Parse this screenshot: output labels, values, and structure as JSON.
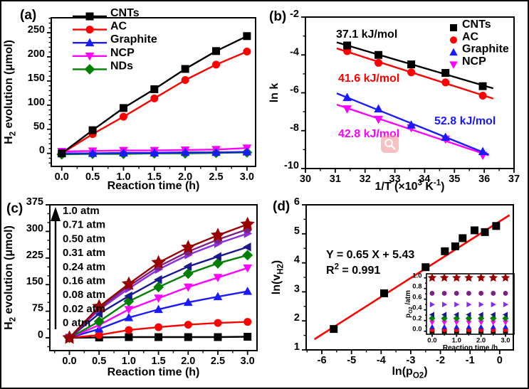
{
  "figure": {
    "panel_tags": [
      "(a)",
      "(b)",
      "(c)",
      "(d)"
    ],
    "magnifier_icon": "magnifier"
  },
  "colors": {
    "black": "#000000",
    "red": "#ff0000",
    "blue": "#1a1aff",
    "magenta": "#ff00ff",
    "green": "#008000",
    "dark_red": "#990000",
    "purple": "#7b2182",
    "violet": "#8a2be2",
    "navy": "#1a1a8c",
    "fit_red": "#ff0000"
  },
  "chart_data": [
    {
      "id": "a",
      "type": "line",
      "title": "",
      "xlabel": "Reaction time (h)",
      "ylabel": "H~2~ evolution (μmol)",
      "xlim": [
        -0.17,
        3.14
      ],
      "ylim": [
        -27,
        281
      ],
      "xticks": [
        0,
        0.5,
        1,
        1.5,
        2,
        2.5,
        3
      ],
      "xtick_labels": [
        "0.0",
        "0.5",
        "1.0",
        "1.5",
        "2.0",
        "2.5",
        "3.0"
      ],
      "yticks": [
        0,
        50,
        100,
        150,
        200,
        250
      ],
      "ytick_labels": [
        "0",
        "50",
        "100",
        "150",
        "200",
        "250"
      ],
      "x": [
        0,
        0.5,
        1,
        1.5,
        2,
        2.5,
        3
      ],
      "series": [
        {
          "name": "CNTs",
          "color": "#000000",
          "marker": "square",
          "line": true,
          "values": [
            0,
            48,
            94,
            133,
            175,
            212,
            243
          ]
        },
        {
          "name": "AC",
          "color": "#ff0000",
          "marker": "circle",
          "line": true,
          "values": [
            0,
            40,
            76,
            114,
            152,
            184,
            211
          ]
        },
        {
          "name": "Graphite",
          "color": "#1a1aff",
          "marker": "triangle-up",
          "line": true,
          "values": [
            0,
            0,
            1,
            1,
            2,
            2,
            3
          ]
        },
        {
          "name": "NCP",
          "color": "#ff00ff",
          "marker": "triangle-down",
          "line": true,
          "values": [
            4,
            5,
            6,
            6,
            7,
            8,
            11
          ]
        },
        {
          "name": "NDs",
          "color": "#008000",
          "marker": "diamond",
          "line": true,
          "values": [
            -2,
            -1,
            -1,
            0,
            0,
            1,
            2
          ]
        }
      ],
      "legend": {
        "position": "upper-left",
        "style": "line-marker",
        "items": [
          "CNTs",
          "AC",
          "Graphite",
          "NCP",
          "NDs"
        ]
      }
    },
    {
      "id": "b",
      "type": "scatter",
      "title": "",
      "xlabel": "1/T (×10^3^ K^-1^)",
      "ylabel": "ln k",
      "xlim": [
        30,
        37
      ],
      "ylim": [
        -10,
        -2
      ],
      "xticks": [
        30,
        31,
        32,
        33,
        34,
        35,
        36,
        37
      ],
      "xtick_labels": [
        "30",
        "31",
        "32",
        "33",
        "34",
        "35",
        "36",
        "37"
      ],
      "yticks": [
        -10,
        -8,
        -6,
        -4,
        -2
      ],
      "ytick_labels": [
        "-10",
        "-8",
        "-6",
        "-4",
        "-2"
      ],
      "x": [
        31.4,
        32.45,
        33.55,
        34.7,
        35.95
      ],
      "series": [
        {
          "name": "CNTs",
          "color": "#000000",
          "marker": "square",
          "fit": true,
          "fit_range": [
            31.05,
            36.3
          ],
          "values": [
            -3.5,
            -4.0,
            -4.5,
            -4.95,
            -5.65
          ]
        },
        {
          "name": "AC",
          "color": "#ff0000",
          "marker": "circle",
          "fit": true,
          "fit_range": [
            31.05,
            36.3
          ],
          "values": [
            -3.8,
            -4.42,
            -4.92,
            -5.45,
            -6.15
          ]
        },
        {
          "name": "Graphite",
          "color": "#1a1aff",
          "marker": "triangle-up",
          "fit": true,
          "fit_range": [
            31.05,
            36.15
          ],
          "values": [
            -6.25,
            -6.85,
            -7.7,
            -8.35,
            -9.1
          ]
        },
        {
          "name": "NCP",
          "color": "#ff00ff",
          "marker": "triangle-down",
          "fit": true,
          "fit_range": [
            31.05,
            36.15
          ],
          "values": [
            -6.85,
            -7.4,
            -7.85,
            -8.45,
            -9.3
          ]
        }
      ],
      "annotations": [
        {
          "text": "37.1 kJ/mol",
          "color": "#000000"
        },
        {
          "text": "41.6 kJ/mol",
          "color": "#ff0000"
        },
        {
          "text": "52.8 kJ/mol",
          "color": "#1a1aff"
        },
        {
          "text": "42.8 kJ/mol",
          "color": "#ff00ff"
        }
      ],
      "legend": {
        "position": "upper-right",
        "style": "marker",
        "items": [
          "CNTs",
          "AC",
          "Graphite",
          "NCP"
        ]
      }
    },
    {
      "id": "c",
      "type": "line",
      "title": "",
      "xlabel": "Reaction time (h)",
      "ylabel": "H~2~ evolution (μmol)",
      "xlim": [
        -0.33,
        3.16
      ],
      "ylim": [
        -36,
        375
      ],
      "xticks": [
        0,
        0.5,
        1,
        1.5,
        2,
        2.5,
        3
      ],
      "xtick_labels": [
        "0.0",
        "0.5",
        "1.0",
        "1.5",
        "2.0",
        "2.5",
        "3.0"
      ],
      "yticks": [
        0,
        75,
        150,
        225,
        300,
        375
      ],
      "ytick_labels": [
        "0",
        "75",
        "150",
        "225",
        "300",
        "375"
      ],
      "x": [
        0,
        0.5,
        1,
        1.5,
        2,
        2.5,
        3
      ],
      "series": [
        {
          "name": "1.0 atm",
          "color": "#990000",
          "marker": "star",
          "line": true,
          "values": [
            0,
            88,
            152,
            212,
            255,
            289,
            320
          ]
        },
        {
          "name": "0.71 atm",
          "color": "#7b2182",
          "marker": "circle",
          "line": true,
          "values": [
            0,
            83,
            146,
            201,
            243,
            277,
            306
          ]
        },
        {
          "name": "0.50 atm",
          "color": "#8a2be2",
          "marker": "triangle-right",
          "line": true,
          "values": [
            0,
            79,
            139,
            193,
            234,
            266,
            294
          ]
        },
        {
          "name": "0.31 atm",
          "color": "#1a1a8c",
          "marker": "triangle-left",
          "line": true,
          "values": [
            0,
            68,
            118,
            164,
            201,
            229,
            256
          ]
        },
        {
          "name": "0.24 atm",
          "color": "#008000",
          "marker": "diamond",
          "line": true,
          "values": [
            0,
            46,
            103,
            143,
            181,
            210,
            233
          ]
        },
        {
          "name": "0.16 atm",
          "color": "#ff00ff",
          "marker": "triangle-down",
          "line": true,
          "values": [
            0,
            36,
            80,
            112,
            143,
            170,
            197
          ]
        },
        {
          "name": "0.08 atm",
          "color": "#1a1aff",
          "marker": "triangle-up",
          "line": true,
          "values": [
            0,
            25,
            57,
            80,
            100,
            116,
            131
          ]
        },
        {
          "name": "0.02 atm",
          "color": "#ff0000",
          "marker": "circle",
          "line": true,
          "values": [
            0,
            8,
            22,
            30,
            37,
            42,
            45
          ]
        },
        {
          "name": "0 atm",
          "color": "#000000",
          "marker": "square",
          "line": true,
          "values": [
            0,
            1,
            2,
            2,
            2,
            2,
            3
          ]
        }
      ],
      "pressure_arrow": true
    },
    {
      "id": "d",
      "type": "scatter",
      "title": "",
      "xlabel": "ln(p~O2~)",
      "ylabel": "ln(v~H2~)",
      "xlim": [
        -6.53,
        0.46
      ],
      "ylim": [
        1,
        6
      ],
      "xticks": [
        -6,
        -5,
        -4,
        -3,
        -2,
        -1,
        0
      ],
      "xtick_labels": [
        "-6",
        "-5",
        "-4",
        "-3",
        "-2",
        "-1",
        "0"
      ],
      "yticks": [
        1,
        2,
        3,
        4,
        5,
        6
      ],
      "ytick_labels": [
        "1",
        "2",
        "3",
        "4",
        "5",
        "6"
      ],
      "series": [
        {
          "name": "data",
          "color": "#000000",
          "marker": "square",
          "xvals": [
            -5.6,
            -3.9,
            -2.5,
            -1.85,
            -1.5,
            -1.25,
            -0.85,
            -0.5,
            -0.12
          ],
          "values": [
            1.72,
            2.95,
            3.85,
            4.4,
            4.57,
            4.85,
            5.12,
            5.06,
            5.27
          ]
        }
      ],
      "fit": {
        "slope": 0.65,
        "intercept": 5.43,
        "color": "#ff0000",
        "range": [
          -6.25,
          0.33
        ]
      },
      "annotations": [
        {
          "text": "Y = 0.65 X + 5.43",
          "color": "#000000"
        },
        {
          "text": "R^2^ = 0.991",
          "color": "#000000"
        }
      ]
    },
    {
      "id": "d_inset",
      "type": "scatter",
      "title": "",
      "xlabel": "Reaction time /h",
      "ylabel": "p~O2~ /atm",
      "xlim": [
        -0.23,
        3.35
      ],
      "ylim": [
        -0.057,
        1.076
      ],
      "xticks": [
        0,
        1,
        2,
        3
      ],
      "xtick_labels": [
        "0.0",
        "1.0",
        "2.0",
        "3.0"
      ],
      "yticks": [
        0,
        0.2,
        0.4,
        0.6,
        0.8,
        1.0
      ],
      "ytick_labels": [
        "0.0",
        "0.2",
        "0.4",
        "0.6",
        "0.8",
        "1.0"
      ],
      "x": [
        0,
        0.5,
        1,
        1.5,
        2,
        2.5,
        3
      ],
      "series": [
        {
          "name": "1.0 atm",
          "color": "#990000",
          "marker": "star",
          "values": [
            1.0,
            1.0,
            1.0,
            1.0,
            1.0,
            1.0,
            1.0
          ]
        },
        {
          "name": "0.71 atm",
          "color": "#7b2182",
          "marker": "circle",
          "values": [
            0.71,
            0.71,
            0.71,
            0.71,
            0.71,
            0.71,
            0.71
          ]
        },
        {
          "name": "0.50 atm",
          "color": "#8a2be2",
          "marker": "triangle-right",
          "values": [
            0.5,
            0.5,
            0.5,
            0.5,
            0.5,
            0.5,
            0.5
          ]
        },
        {
          "name": "0.31 atm",
          "color": "#1a1a8c",
          "marker": "triangle-left",
          "values": [
            0.31,
            0.31,
            0.31,
            0.31,
            0.31,
            0.31,
            0.31
          ]
        },
        {
          "name": "0.24 atm",
          "color": "#008000",
          "marker": "diamond",
          "values": [
            0.24,
            0.24,
            0.24,
            0.24,
            0.24,
            0.24,
            0.24
          ]
        },
        {
          "name": "0.16 atm",
          "color": "#ff00ff",
          "marker": "triangle-down",
          "values": [
            0.16,
            0.16,
            0.16,
            0.16,
            0.16,
            0.16,
            0.16
          ]
        },
        {
          "name": "0.08 atm",
          "color": "#1a1aff",
          "marker": "triangle-up",
          "values": [
            0.08,
            0.08,
            0.08,
            0.08,
            0.08,
            0.08,
            0.08
          ]
        },
        {
          "name": "0.02 atm",
          "color": "#ff0000",
          "marker": "circle",
          "values": [
            0.025,
            0.025,
            0.025,
            0.025,
            0.025,
            0.025,
            0.025
          ]
        },
        {
          "name": "0 atm",
          "color": "#000000",
          "marker": "square",
          "values": [
            0,
            0,
            0,
            0,
            0,
            0,
            0
          ]
        }
      ]
    }
  ]
}
